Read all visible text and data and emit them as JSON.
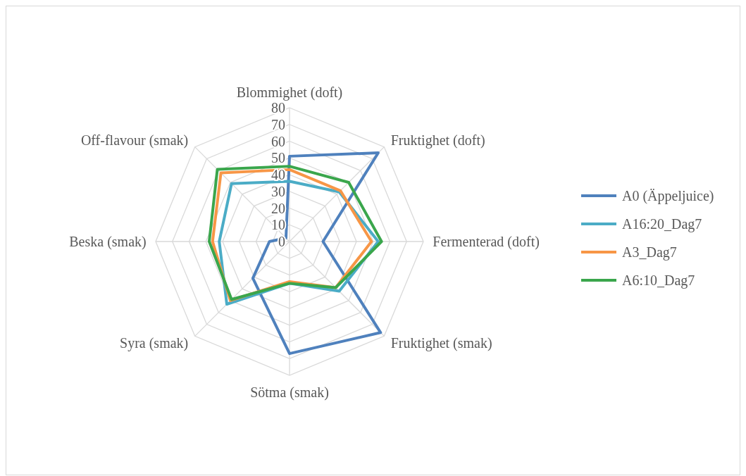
{
  "chart_data": {
    "type": "radar",
    "categories": [
      "Blommighet (doft)",
      "Fruktighet (doft)",
      "Fermenterad (doft)",
      "Fruktighet (smak)",
      "Sötma (smak)",
      "Syra (smak)",
      "Beska (smak)",
      "Off-flavour (smak)"
    ],
    "series": [
      {
        "name": "A0 (Äppeljuice)",
        "color": "#4f81bd",
        "values": [
          51,
          75,
          20,
          77,
          67,
          31,
          12,
          3
        ]
      },
      {
        "name": "A16:20_Dag7",
        "color": "#4bacc6",
        "values": [
          36,
          42,
          53,
          42,
          25,
          53,
          42,
          49
        ]
      },
      {
        "name": "A3_Dag7",
        "color": "#f79646",
        "values": [
          43,
          43,
          49,
          39,
          24,
          50,
          46,
          58
        ]
      },
      {
        "name": "A6:10_Dag7",
        "color": "#3aa64c",
        "values": [
          45,
          50,
          55,
          39,
          25,
          49,
          48,
          61
        ]
      }
    ],
    "ylim": [
      0,
      80
    ],
    "yticks": [
      0,
      10,
      20,
      30,
      40,
      50,
      60,
      70,
      80
    ],
    "grid": true,
    "legend": "right",
    "marker": "none"
  }
}
